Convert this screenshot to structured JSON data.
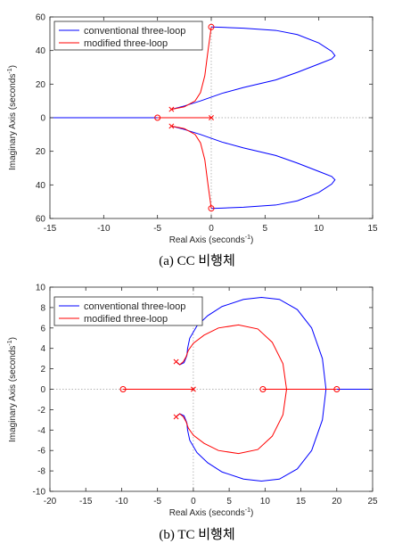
{
  "chart_data": [
    {
      "type": "line",
      "subtype": "root-locus",
      "caption": "(a)  CC  비행체",
      "xlabel": "Real Axis (seconds",
      "ylabel": "Imaginary Axis (seconds",
      "unit_exponent": "-1",
      "xlim": [
        -15,
        15
      ],
      "ylim": [
        -60,
        60
      ],
      "xticks": [
        "-15",
        "-10",
        "-5",
        "0",
        "5",
        "10",
        "15"
      ],
      "yticks": [
        "60",
        "40",
        "20",
        "0",
        "20",
        "40",
        "60"
      ],
      "ytick_values": [
        60,
        40,
        20,
        0,
        -20,
        -40,
        -60
      ],
      "xtick_values": [
        -15,
        -10,
        -5,
        0,
        5,
        10,
        15
      ],
      "grid": "zero lines dotted",
      "legend_position": "top-left",
      "series": [
        {
          "name": "conventional three-loop",
          "color": "#0000ff",
          "branches": [
            {
              "x": [
                -15,
                -12,
                -8,
                -5
              ],
              "y": [
                0,
                0,
                0,
                0
              ]
            },
            {
              "x": [
                -3.7,
                -2.5,
                -1,
                1,
                3,
                6,
                8,
                10,
                11.2,
                11.5,
                11.2,
                10,
                8,
                6,
                3,
                1,
                0
              ],
              "y": [
                5,
                7,
                10,
                14.5,
                18,
                22.5,
                27,
                32,
                35,
                37,
                39.5,
                44.5,
                49.5,
                52,
                53.3,
                53.8,
                54
              ]
            },
            {
              "x": [
                -3.7,
                -2.5,
                -1,
                1,
                3,
                6,
                8,
                10,
                11.2,
                11.5,
                11.2,
                10,
                8,
                6,
                3,
                1,
                0
              ],
              "y": [
                -5,
                -7,
                -10,
                -14.5,
                -18,
                -22.5,
                -27,
                -32,
                -35,
                -37,
                -39.5,
                -44.5,
                -49.5,
                -52,
                -53.3,
                -53.8,
                -54
              ]
            }
          ]
        },
        {
          "name": "modified three-loop",
          "color": "#ff0000",
          "branches": [
            {
              "x": [
                -3.7,
                -2.5,
                -1.5,
                -1,
                -0.6,
                -0.3,
                0
              ],
              "y": [
                5,
                6.5,
                10,
                15,
                25,
                40,
                54
              ]
            },
            {
              "x": [
                -3.7,
                -2.5,
                -1.5,
                -1,
                -0.6,
                -0.3,
                0
              ],
              "y": [
                -5,
                -6.5,
                -10,
                -15,
                -25,
                -40,
                -54
              ]
            },
            {
              "x": [
                -5,
                -4,
                -2,
                0
              ],
              "y": [
                0,
                0,
                0,
                0
              ]
            }
          ]
        }
      ],
      "poles": [
        {
          "x": -3.7,
          "y": 5
        },
        {
          "x": -3.7,
          "y": -5
        },
        {
          "x": 0,
          "y": 0
        }
      ],
      "zeros": [
        {
          "x": -5,
          "y": 0
        },
        {
          "x": 0,
          "y": 54
        },
        {
          "x": 0,
          "y": -54
        }
      ]
    },
    {
      "type": "line",
      "subtype": "root-locus",
      "caption": "(b)  TC  비행체",
      "xlabel": "Real Axis (seconds",
      "ylabel": "Imaginary Axis (seconds",
      "unit_exponent": "-1",
      "xlim": [
        -20,
        25
      ],
      "ylim": [
        -10,
        10
      ],
      "xticks": [
        "-20",
        "-15",
        "-10",
        "-5",
        "0",
        "5",
        "10",
        "15",
        "20",
        "25"
      ],
      "xtick_values": [
        -20,
        -15,
        -10,
        -5,
        0,
        5,
        10,
        15,
        20,
        25
      ],
      "yticks": [
        "10",
        "8",
        "6",
        "4",
        "2",
        "0",
        "-2",
        "-4",
        "-6",
        "-8",
        "-10"
      ],
      "ytick_values": [
        10,
        8,
        6,
        4,
        2,
        0,
        -2,
        -4,
        -6,
        -8,
        -10
      ],
      "grid": "zero lines dotted",
      "legend_position": "top-left",
      "series": [
        {
          "name": "conventional three-loop",
          "color": "#0000ff",
          "branches": [
            {
              "x": [
                -2.4,
                -1.9,
                -1.3,
                -0.9,
                -0.8,
                -0.5,
                0.5,
                2,
                4,
                7,
                9.5,
                12,
                14.5,
                16.5,
                18,
                18.5
              ],
              "y": [
                2.7,
                2.4,
                2.6,
                3.3,
                4,
                5,
                6.2,
                7.2,
                8.1,
                8.8,
                9,
                8.8,
                7.8,
                6,
                3,
                0
              ]
            },
            {
              "x": [
                -2.4,
                -1.9,
                -1.3,
                -0.9,
                -0.8,
                -0.5,
                0.5,
                2,
                4,
                7,
                9.5,
                12,
                14.5,
                16.5,
                18,
                18.5
              ],
              "y": [
                -2.7,
                -2.4,
                -2.6,
                -3.3,
                -4,
                -5,
                -6.2,
                -7.2,
                -8.1,
                -8.8,
                -9,
                -8.8,
                -7.8,
                -6,
                -3,
                0
              ]
            },
            {
              "x": [
                20,
                22,
                25
              ],
              "y": [
                0,
                0,
                0
              ]
            }
          ]
        },
        {
          "name": "modified three-loop",
          "color": "#ff0000",
          "branches": [
            {
              "x": [
                -2.4,
                -1.9,
                -1.4,
                -1,
                -0.7,
                0,
                1.5,
                3.5,
                6.3,
                9,
                11,
                12.5,
                13
              ],
              "y": [
                2.7,
                2.4,
                2.7,
                3.2,
                3.8,
                4.5,
                5.3,
                6,
                6.3,
                5.9,
                4.6,
                2.5,
                0
              ]
            },
            {
              "x": [
                -2.4,
                -1.9,
                -1.4,
                -1,
                -0.7,
                0,
                1.5,
                3.5,
                6.3,
                9,
                11,
                12.5,
                13
              ],
              "y": [
                -2.7,
                -2.4,
                -2.7,
                -3.2,
                -3.8,
                -4.5,
                -5.3,
                -6,
                -6.3,
                -5.9,
                -4.6,
                -2.5,
                0
              ]
            },
            {
              "x": [
                -9.8,
                -5,
                0
              ],
              "y": [
                0,
                0,
                0
              ]
            },
            {
              "x": [
                9.7,
                15,
                20
              ],
              "y": [
                0,
                0,
                0
              ]
            }
          ]
        }
      ],
      "poles": [
        {
          "x": -2.4,
          "y": 2.7
        },
        {
          "x": -2.4,
          "y": -2.7
        },
        {
          "x": 0,
          "y": 0
        }
      ],
      "zeros": [
        {
          "x": -9.8,
          "y": 0
        },
        {
          "x": 9.7,
          "y": 0
        },
        {
          "x": 20,
          "y": 0
        }
      ]
    }
  ]
}
